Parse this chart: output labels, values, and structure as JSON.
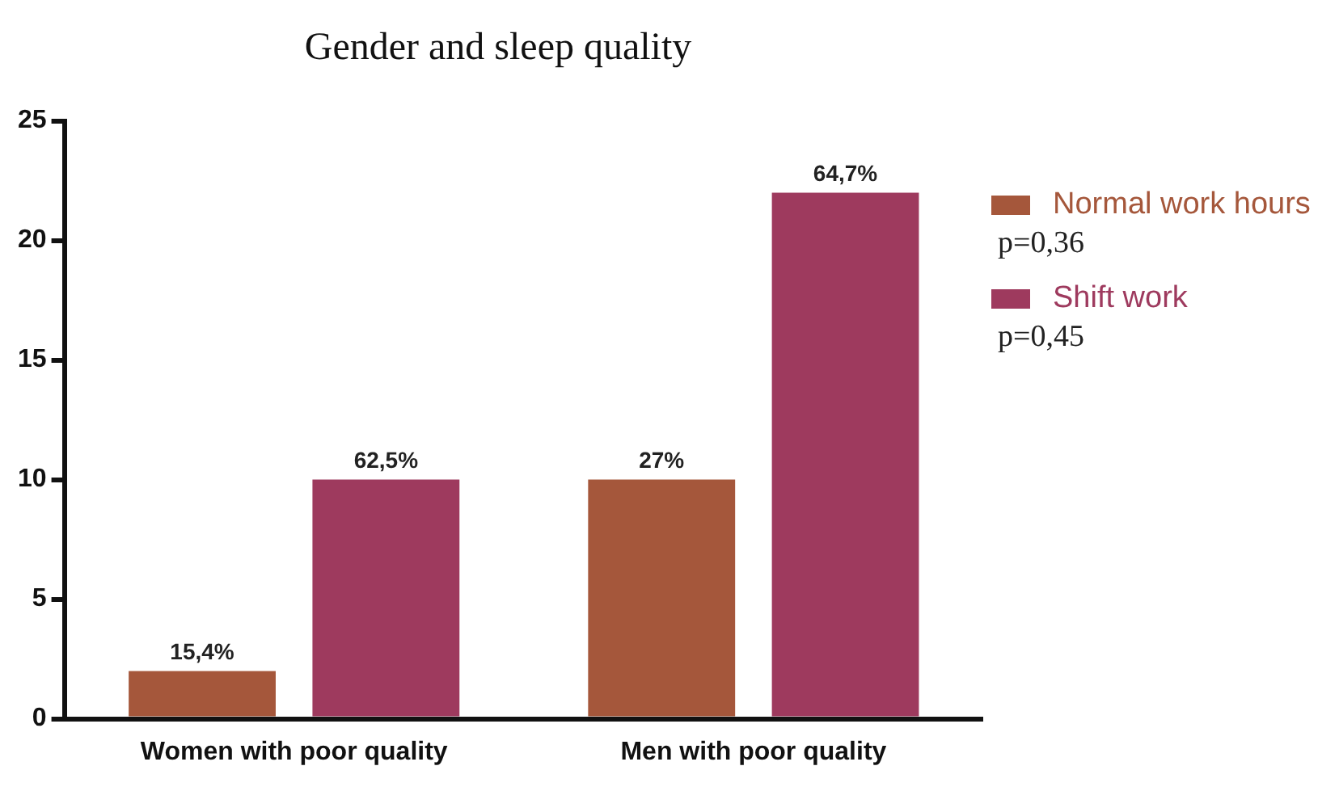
{
  "chart_data": {
    "type": "bar",
    "title": "Gender and sleep quality",
    "categories": [
      "Women with poor quality",
      "Men with poor quality"
    ],
    "series": [
      {
        "name": "Normal work hours",
        "color": "#a5573b",
        "values": [
          2,
          10
        ]
      },
      {
        "name": "Shift work",
        "color": "#9e3a5e",
        "values": [
          10,
          22
        ]
      }
    ],
    "ylim": [
      0,
      25
    ],
    "yticks": [
      0,
      5,
      10,
      15,
      20,
      25
    ],
    "grid": false,
    "legend": "top right",
    "annotations": [
      "p=0,36",
      "p=0,45",
      "15,4%",
      "62,5%",
      "27%",
      "64,7%"
    ]
  }
}
